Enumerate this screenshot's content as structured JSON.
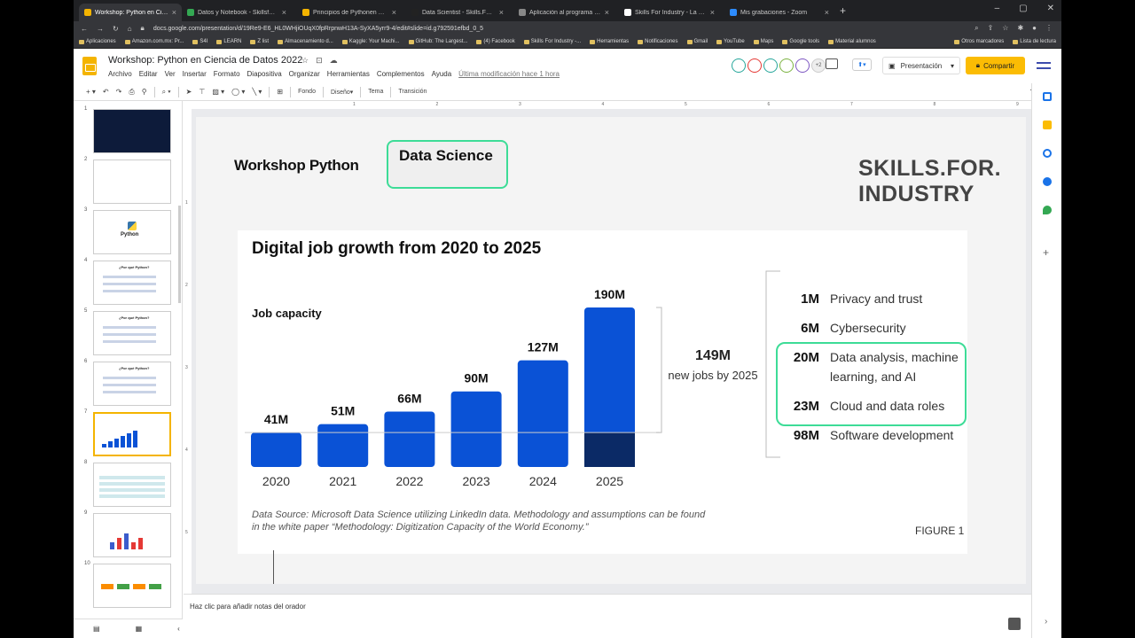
{
  "browser": {
    "tabs": [
      {
        "title": "Workshop: Python en Ciencia de",
        "color": "#f4b400",
        "active": true
      },
      {
        "title": "Datos y Notebook - Skillsforindu",
        "color": "#34a853",
        "active": false
      },
      {
        "title": "Principios de Pythonen Ciencia d",
        "color": "#f4b400",
        "active": false
      },
      {
        "title": "Data Scientist - Skills.For.Industry",
        "color": "#222222",
        "active": false
      },
      {
        "title": "Aplicación al programa Data Scie",
        "color": "#888888",
        "active": false
      },
      {
        "title": "Skills For Industry - La escuela de",
        "color": "#ffffff",
        "active": false
      },
      {
        "title": "Mis grabaciones - Zoom",
        "color": "#2d8cff",
        "active": false
      }
    ],
    "new_tab": "+",
    "url": "docs.google.com/presentation/d/19Re9-E6_HL0WHjiOUqX0fpRrpnwH13A-SyXA5yrr9-4/edit#slide=id.g792591efbd_0_5",
    "bookmarks": [
      "Aplicaciones",
      "Amazon.com.mx: Pr...",
      "S4I",
      "LEARN",
      "Z list",
      "Almacenamiento d...",
      "Kaggle: Your Machi...",
      "GitHub: The Largest...",
      "(4) Facebook",
      "Skills For Industry -...",
      "Herramientas",
      "Notificaciones",
      "Gmail",
      "YouTube",
      "Maps",
      "Google tools",
      "Material alumnos"
    ],
    "bookmarks_right": [
      "Otros marcadores",
      "Lista de lectura"
    ]
  },
  "app": {
    "doc_title": "Workshop:  Python en Ciencia de Datos 2022",
    "menus": [
      "Archivo",
      "Editar",
      "Ver",
      "Insertar",
      "Formato",
      "Diapositiva",
      "Organizar",
      "Herramientas",
      "Complementos",
      "Ayuda"
    ],
    "last_edit": "Última modificación hace 1 hora",
    "avatars_more": "+2",
    "present_label": "Presentación",
    "share_label": "Compartir",
    "share_icon": "lock-icon"
  },
  "toolbar": {
    "fondo": "Fondo",
    "diseno": "Diseño",
    "tema": "Tema",
    "transicion": "Transición"
  },
  "filmstrip": {
    "slide_numbers": [
      "1",
      "2",
      "3",
      "4",
      "5",
      "6",
      "7",
      "8",
      "9",
      "10"
    ],
    "thumb_python": "Python",
    "thumb_por_que": "¿Por qué Python?",
    "active_slide": 7
  },
  "ruler": [
    "1",
    "2",
    "3",
    "4",
    "5",
    "6",
    "7",
    "8",
    "9"
  ],
  "vruler": [
    "1",
    "2",
    "3",
    "4",
    "5"
  ],
  "slide": {
    "workshop_title": "Workshop Python",
    "ds_label": "Data Science",
    "brand": "SKILLS.FOR. INDUSTRY",
    "chart_title": "Digital job growth from 2020 to 2025",
    "job_capacity": "Job capacity",
    "big_number": "149M",
    "big_text": "new jobs by 2025",
    "categories": [
      {
        "value": "1M",
        "label": "Privacy and trust"
      },
      {
        "value": "6M",
        "label": "Cybersecurity"
      },
      {
        "value": "20M",
        "label": "Data analysis, machine learning, and AI"
      },
      {
        "value": "23M",
        "label": "Cloud and data roles"
      },
      {
        "value": "98M",
        "label": "Software development"
      }
    ],
    "source": "Data Source: Microsoft Data Science utilizing LinkedIn data. Methodology and assumptions can be found in the white paper “Methodology: Digitization Capacity of the World Economy.”",
    "figure": "FIGURE 1",
    "colors": {
      "bar": "#0a52d6",
      "bar_dark": "#0b2a66",
      "highlight": "#3ddc97"
    }
  },
  "notes": {
    "placeholder": "Haz clic para añadir notas del orador"
  },
  "chart_data": {
    "type": "bar",
    "title": "Digital job growth from 2020 to 2025",
    "categories": [
      "2020",
      "2021",
      "2022",
      "2023",
      "2024",
      "2025"
    ],
    "values": [
      41,
      51,
      66,
      90,
      127,
      190
    ],
    "value_labels": [
      "41M",
      "51M",
      "66M",
      "90M",
      "127M",
      "190M"
    ],
    "ylabel": "Job capacity",
    "ylim": [
      0,
      190
    ],
    "unit": "M",
    "baseline_2025": 41,
    "new_jobs_2025": 149
  }
}
